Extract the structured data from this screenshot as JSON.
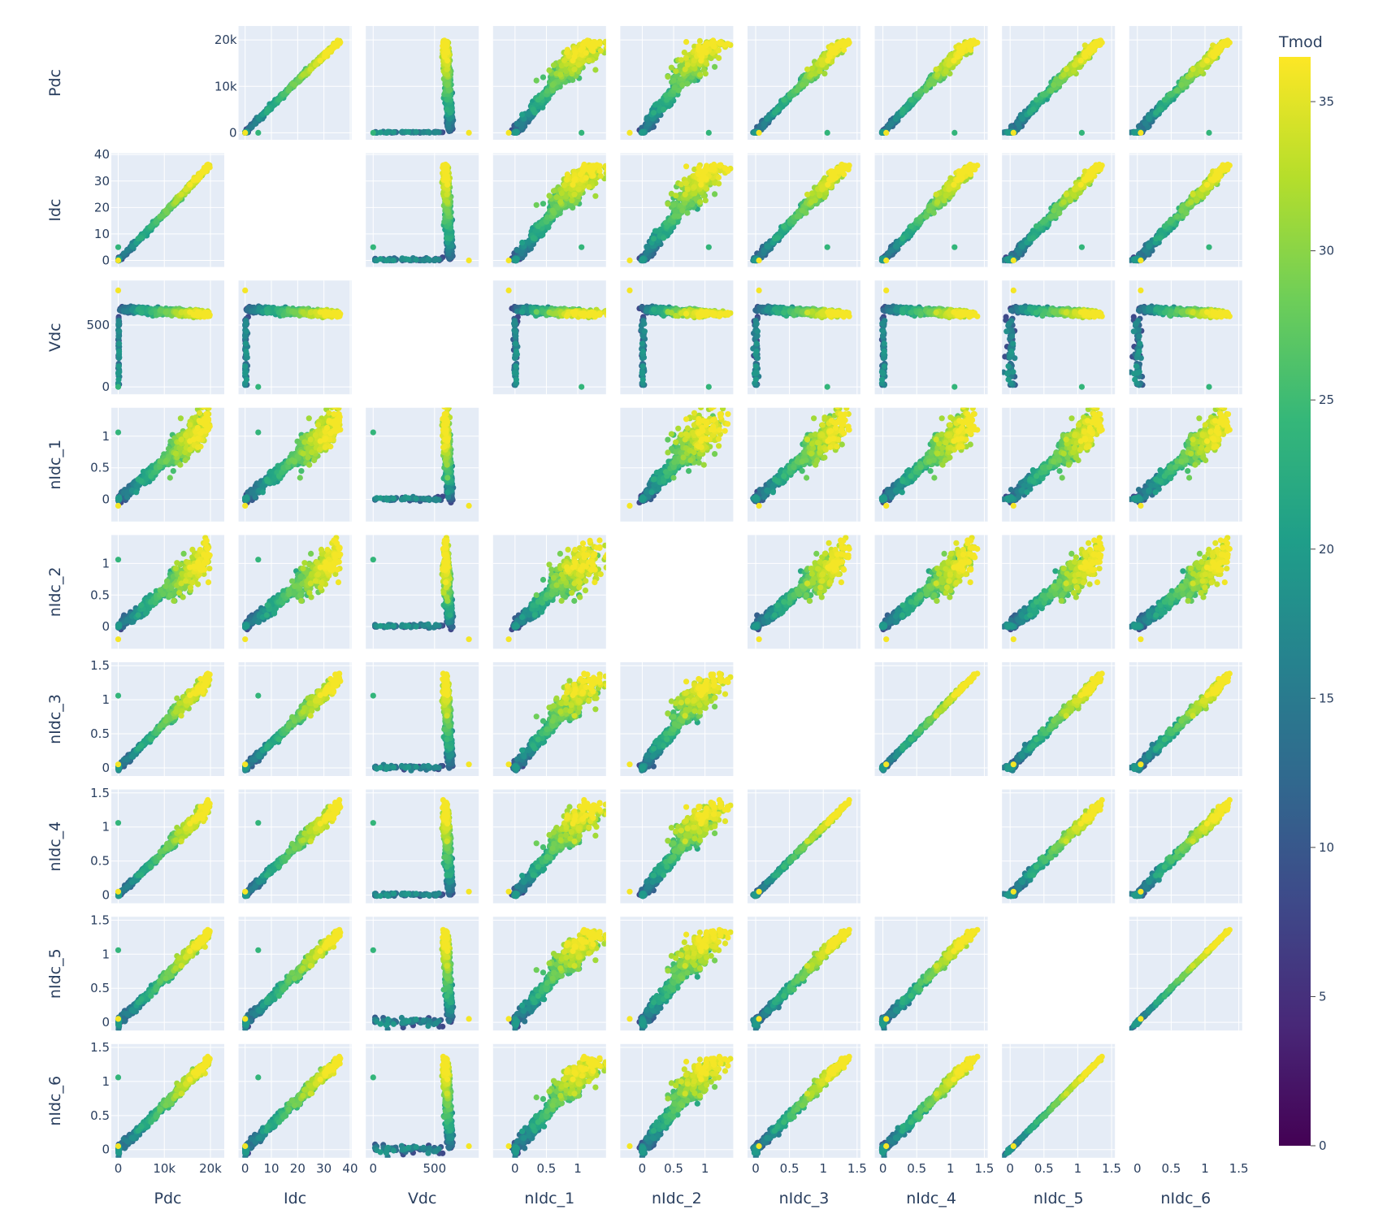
{
  "chart_data": {
    "type": "scatter",
    "subtype": "scatter-matrix",
    "diagonal_visible": false,
    "plot_bgcolor": "#E5ECF6",
    "gridline_color": "#ffffff",
    "colorscale": "viridis",
    "color_stops": [
      "#440154",
      "#482878",
      "#3e4989",
      "#31688e",
      "#26828e",
      "#1f9e89",
      "#35b779",
      "#6ece58",
      "#b5de2b",
      "#fde725"
    ],
    "dimensions": [
      {
        "name": "Pdc",
        "range": [
          -1500,
          23000
        ],
        "ticks": [
          0,
          10000,
          20000
        ],
        "ticklabels": [
          "0",
          "10k",
          "20k"
        ],
        "max": 21000
      },
      {
        "name": "Idc",
        "range": [
          -2.5,
          40.5
        ],
        "ticks": [
          0,
          10,
          20,
          30,
          40
        ],
        "ticklabels": [
          "0",
          "10",
          "20",
          "30",
          "40"
        ],
        "max": 36
      },
      {
        "name": "Vdc",
        "range": [
          -60,
          860
        ],
        "ticks": [
          0,
          500
        ],
        "ticklabels": [
          "0",
          "500"
        ],
        "plateau": 590
      },
      {
        "name": "nIdc_1",
        "range": [
          -0.35,
          1.45
        ],
        "ticks": [
          0,
          0.5,
          1
        ],
        "ticklabels": [
          "0",
          "0.5",
          "1"
        ],
        "max": 1.22
      },
      {
        "name": "nIdc_2",
        "range": [
          -0.35,
          1.45
        ],
        "ticks": [
          0,
          0.5,
          1
        ],
        "ticklabels": [
          "0",
          "0.5",
          "1"
        ],
        "max": 1.15
      },
      {
        "name": "nIdc_3",
        "range": [
          -0.12,
          1.55
        ],
        "ticks": [
          0,
          0.5,
          1,
          1.5
        ],
        "ticklabels": [
          "0",
          "0.5",
          "1",
          "1.5"
        ],
        "max": 1.32
      },
      {
        "name": "nIdc_4",
        "range": [
          -0.12,
          1.55
        ],
        "ticks": [
          0,
          0.5,
          1,
          1.5
        ],
        "ticklabels": [
          "0",
          "0.5",
          "1",
          "1.5"
        ],
        "max": 1.32
      },
      {
        "name": "nIdc_5",
        "range": [
          -0.12,
          1.55
        ],
        "ticks": [
          0,
          0.5,
          1,
          1.5
        ],
        "ticklabels": [
          "0",
          "0.5",
          "1",
          "1.5"
        ],
        "max": 1.32
      },
      {
        "name": "nIdc_6",
        "range": [
          -0.12,
          1.55
        ],
        "ticks": [
          0,
          0.5,
          1,
          1.5
        ],
        "ticklabels": [
          "0",
          "0.5",
          "1",
          "1.5"
        ],
        "max": 1.32
      }
    ],
    "colorbar": {
      "title": "Tmod",
      "range": [
        0,
        36.5
      ],
      "ticks": [
        0,
        5,
        10,
        15,
        20,
        25,
        30,
        35
      ],
      "ticklabels": [
        "0",
        "5",
        "10",
        "15",
        "20",
        "25",
        "30",
        "35"
      ]
    }
  }
}
